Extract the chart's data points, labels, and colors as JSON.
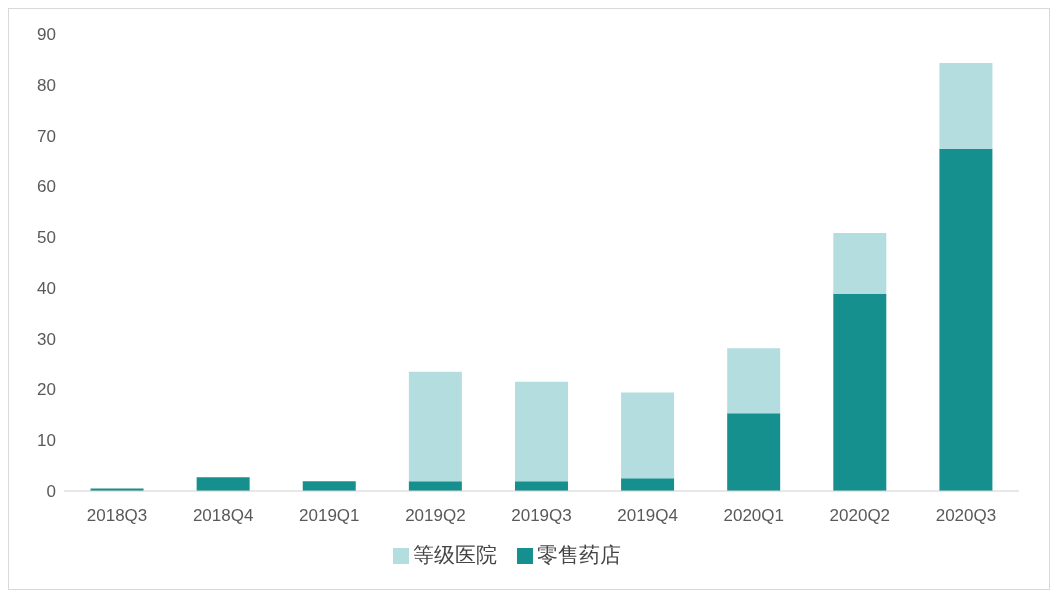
{
  "chart_data": {
    "type": "bar",
    "stacked": true,
    "categories": [
      "2018Q3",
      "2018Q4",
      "2019Q1",
      "2019Q2",
      "2019Q3",
      "2019Q4",
      "2020Q1",
      "2020Q2",
      "2020Q3"
    ],
    "series": [
      {
        "name": "零售药店",
        "color": "#16908f",
        "values": [
          0.5,
          2.7,
          1.9,
          1.9,
          1.9,
          2.5,
          15.3,
          38.8,
          67.4
        ]
      },
      {
        "name": "等级医院",
        "color": "#b4dde0",
        "values": [
          0,
          0,
          0,
          21.6,
          19.6,
          16.9,
          12.8,
          12,
          16.9
        ]
      }
    ],
    "ylim": [
      0,
      90
    ],
    "yticks": [
      0,
      10,
      20,
      30,
      40,
      50,
      60,
      70,
      80,
      90
    ],
    "grid": false,
    "legend": "bottom"
  }
}
